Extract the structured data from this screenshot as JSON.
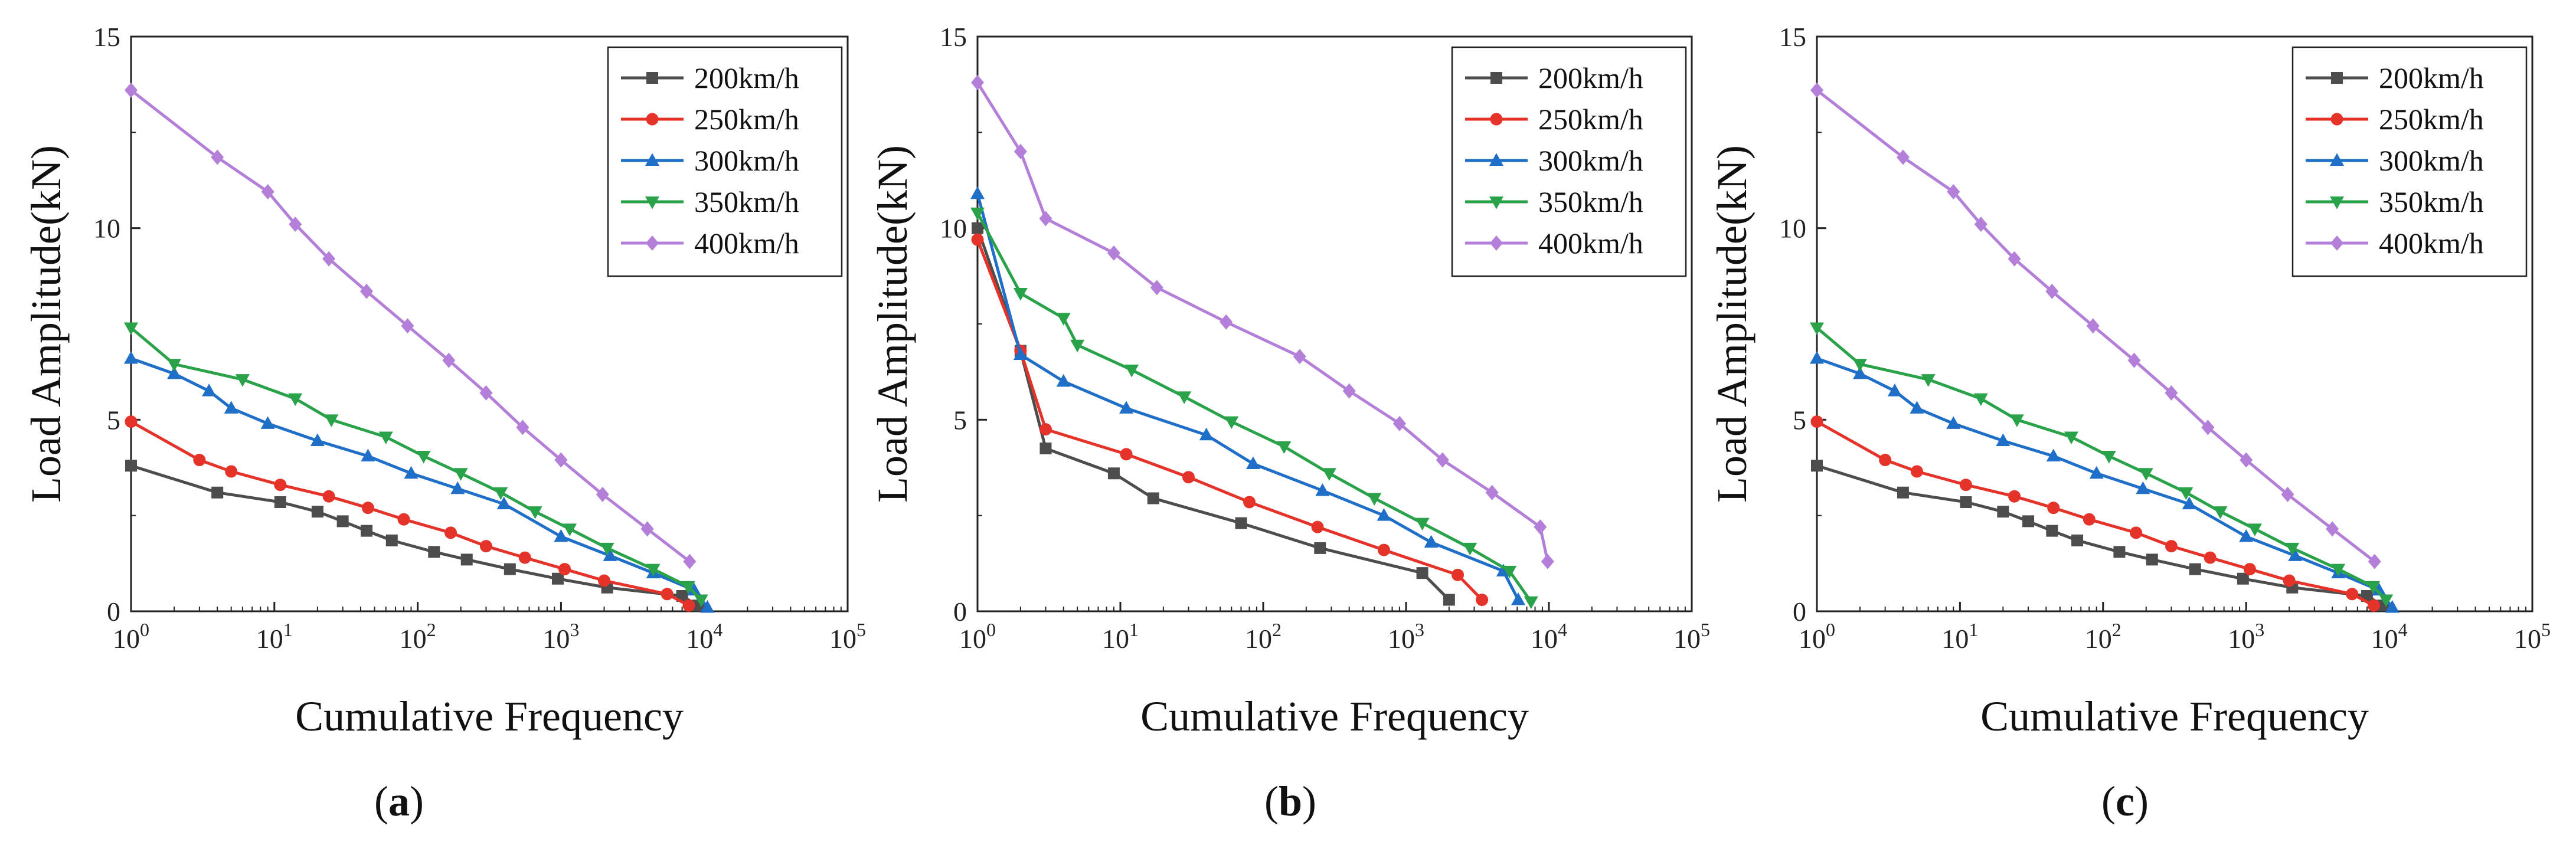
{
  "figure": {
    "xlabel": "Cumulative Frequency",
    "ylabel": "Load Amplitude(kN)"
  },
  "series_style": [
    {
      "name": "200km/h",
      "color": "#4d4d4d",
      "marker": "square"
    },
    {
      "name": "250km/h",
      "color": "#e5332a",
      "marker": "circle"
    },
    {
      "name": "300km/h",
      "color": "#1f6fc9",
      "marker": "triangle-up"
    },
    {
      "name": "350km/h",
      "color": "#2aa24a",
      "marker": "triangle-down"
    },
    {
      "name": "400km/h",
      "color": "#b37fd9",
      "marker": "diamond"
    }
  ],
  "chart_data": [
    {
      "type": "line",
      "panel_label": "a",
      "title": "",
      "xlabel": "Cumulative Frequency",
      "ylabel": "Load Amplitude(kN)",
      "xscale": "log",
      "xlim": [
        1,
        100000
      ],
      "ylim": [
        0,
        15
      ],
      "x_tick_exponents": [
        "0",
        "1",
        "2",
        "3",
        "4",
        "5"
      ],
      "y_ticks": [
        "0",
        "5",
        "10",
        "15"
      ],
      "legend_position": "top-right",
      "series": [
        {
          "name": "200km/h",
          "x": [
            1,
            4,
            11,
            20,
            30,
            44,
            66,
            130,
            220,
            440,
            950,
            2100,
            7000,
            9000
          ],
          "y": [
            3.8,
            3.1,
            2.85,
            2.6,
            2.35,
            2.1,
            1.85,
            1.55,
            1.35,
            1.1,
            0.85,
            0.62,
            0.4,
            0.15
          ]
        },
        {
          "name": "250km/h",
          "x": [
            1,
            3,
            5,
            11,
            24,
            45,
            80,
            170,
            300,
            560,
            1060,
            2000,
            5500,
            7800
          ],
          "y": [
            4.95,
            3.95,
            3.65,
            3.3,
            3.0,
            2.7,
            2.4,
            2.05,
            1.7,
            1.4,
            1.1,
            0.8,
            0.45,
            0.15
          ]
        },
        {
          "name": "300km/h",
          "x": [
            1,
            2,
            3.5,
            5,
            9,
            20,
            45,
            90,
            190,
            400,
            1000,
            2200,
            4400,
            8500,
            10500
          ],
          "y": [
            6.6,
            6.2,
            5.75,
            5.3,
            4.9,
            4.45,
            4.05,
            3.6,
            3.2,
            2.8,
            1.95,
            1.45,
            1.0,
            0.55,
            0.1
          ]
        },
        {
          "name": "350km/h",
          "x": [
            1,
            2,
            6,
            14,
            25,
            60,
            110,
            200,
            380,
            660,
            1150,
            2100,
            4400,
            7700,
            9500
          ],
          "y": [
            7.4,
            6.45,
            6.05,
            5.55,
            5.0,
            4.55,
            4.05,
            3.6,
            3.1,
            2.6,
            2.15,
            1.65,
            1.1,
            0.65,
            0.3
          ]
        },
        {
          "name": "400km/h",
          "x": [
            1,
            4,
            9,
            14,
            24,
            44,
            85,
            165,
            300,
            540,
            1000,
            1950,
            4000,
            7900
          ],
          "y": [
            13.6,
            11.85,
            10.95,
            10.1,
            9.2,
            8.35,
            7.45,
            6.55,
            5.7,
            4.8,
            3.95,
            3.05,
            2.15,
            1.3
          ]
        }
      ]
    },
    {
      "type": "line",
      "panel_label": "b",
      "title": "",
      "xlabel": "Cumulative Frequency",
      "ylabel": "Load Amplitude(kN)",
      "xscale": "log",
      "xlim": [
        1,
        100000
      ],
      "ylim": [
        0,
        15
      ],
      "x_tick_exponents": [
        "0",
        "1",
        "2",
        "3",
        "4",
        "5"
      ],
      "y_ticks": [
        "0",
        "5",
        "10",
        "15"
      ],
      "legend_position": "top-right",
      "series": [
        {
          "name": "200km/h",
          "x": [
            1,
            2,
            3,
            9,
            17,
            70,
            250,
            1300,
            2000
          ],
          "y": [
            10.0,
            6.8,
            4.25,
            3.6,
            2.95,
            2.3,
            1.65,
            1.0,
            0.3
          ]
        },
        {
          "name": "250km/h",
          "x": [
            1,
            2,
            3,
            11,
            30,
            80,
            240,
            700,
            2300,
            3400
          ],
          "y": [
            9.7,
            6.8,
            4.75,
            4.1,
            3.5,
            2.85,
            2.2,
            1.6,
            0.95,
            0.3
          ]
        },
        {
          "name": "300km/h",
          "x": [
            1,
            2,
            4,
            11,
            40,
            85,
            260,
            700,
            1500,
            4800,
            6100
          ],
          "y": [
            10.9,
            6.7,
            6.0,
            5.3,
            4.6,
            3.85,
            3.15,
            2.5,
            1.8,
            1.05,
            0.3
          ]
        },
        {
          "name": "350km/h",
          "x": [
            1,
            2,
            4,
            5,
            12,
            28,
            60,
            140,
            290,
            600,
            1300,
            2800,
            5300,
            7500
          ],
          "y": [
            10.4,
            8.3,
            7.65,
            6.95,
            6.3,
            5.6,
            4.95,
            4.3,
            3.6,
            2.95,
            2.3,
            1.65,
            1.05,
            0.25
          ]
        },
        {
          "name": "400km/h",
          "x": [
            1,
            2,
            3,
            9,
            18,
            55,
            180,
            400,
            900,
            1800,
            4000,
            8700,
            9800
          ],
          "y": [
            13.8,
            12.0,
            10.25,
            9.35,
            8.45,
            7.55,
            6.65,
            5.75,
            4.9,
            3.95,
            3.1,
            2.2,
            1.3
          ]
        }
      ]
    },
    {
      "type": "line",
      "panel_label": "c",
      "title": "",
      "xlabel": "Cumulative Frequency",
      "ylabel": "Load Amplitude(kN)",
      "xscale": "log",
      "xlim": [
        1,
        100000
      ],
      "ylim": [
        0,
        15
      ],
      "x_tick_exponents": [
        "0",
        "1",
        "2",
        "3",
        "4",
        "5"
      ],
      "y_ticks": [
        "0",
        "5",
        "10",
        "15"
      ],
      "legend_position": "top-right",
      "series": [
        {
          "name": "200km/h",
          "x": [
            1,
            4,
            11,
            20,
            30,
            44,
            66,
            130,
            220,
            440,
            950,
            2100,
            7000,
            9000
          ],
          "y": [
            3.8,
            3.1,
            2.85,
            2.6,
            2.35,
            2.1,
            1.85,
            1.55,
            1.35,
            1.1,
            0.85,
            0.62,
            0.4,
            0.15
          ]
        },
        {
          "name": "250km/h",
          "x": [
            1,
            3,
            5,
            11,
            24,
            45,
            80,
            170,
            300,
            560,
            1060,
            2000,
            5500,
            7800
          ],
          "y": [
            4.95,
            3.95,
            3.65,
            3.3,
            3.0,
            2.7,
            2.4,
            2.05,
            1.7,
            1.4,
            1.1,
            0.8,
            0.45,
            0.15
          ]
        },
        {
          "name": "300km/h",
          "x": [
            1,
            2,
            3.5,
            5,
            9,
            20,
            45,
            90,
            190,
            400,
            1000,
            2200,
            4400,
            8500,
            10500
          ],
          "y": [
            6.6,
            6.2,
            5.75,
            5.3,
            4.9,
            4.45,
            4.05,
            3.6,
            3.2,
            2.8,
            1.95,
            1.45,
            1.0,
            0.55,
            0.1
          ]
        },
        {
          "name": "350km/h",
          "x": [
            1,
            2,
            6,
            14,
            25,
            60,
            110,
            200,
            380,
            660,
            1150,
            2100,
            4400,
            7700,
            9500
          ],
          "y": [
            7.4,
            6.45,
            6.05,
            5.55,
            5.0,
            4.55,
            4.05,
            3.6,
            3.1,
            2.6,
            2.15,
            1.65,
            1.1,
            0.65,
            0.3
          ]
        },
        {
          "name": "400km/h",
          "x": [
            1,
            4,
            9,
            14,
            24,
            44,
            85,
            165,
            300,
            540,
            1000,
            1950,
            4000,
            7900
          ],
          "y": [
            13.6,
            11.85,
            10.95,
            10.1,
            9.2,
            8.35,
            7.45,
            6.55,
            5.7,
            4.8,
            3.95,
            3.05,
            2.15,
            1.3
          ]
        }
      ]
    }
  ]
}
